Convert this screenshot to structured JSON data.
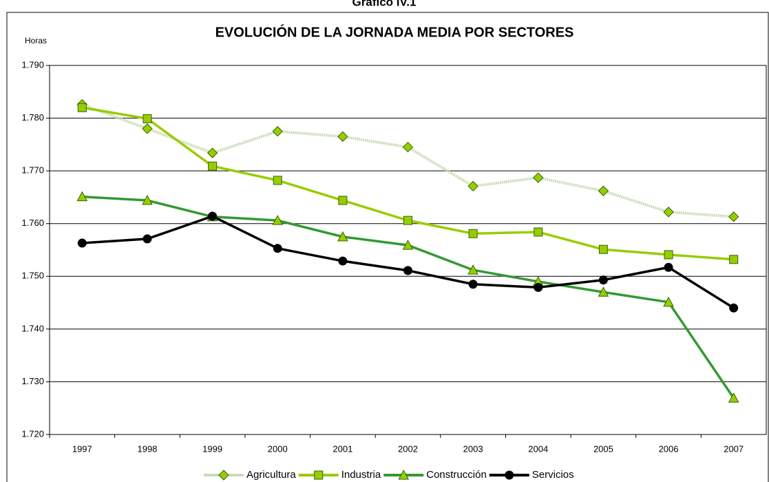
{
  "chart_data": {
    "type": "line",
    "heading": "Gráfico IV.1",
    "title": "EVOLUCIÓN DE LA JORNADA MEDIA POR SECTORES",
    "y_label": "Horas",
    "categories": [
      "1997",
      "1998",
      "1999",
      "2000",
      "2001",
      "2002",
      "2003",
      "2004",
      "2005",
      "2006",
      "2007"
    ],
    "ylim": [
      1720,
      1790
    ],
    "yticks": [
      {
        "value": 1720,
        "label": "1.720"
      },
      {
        "value": 1730,
        "label": "1.730"
      },
      {
        "value": 1740,
        "label": "1.740"
      },
      {
        "value": 1750,
        "label": "1.750"
      },
      {
        "value": 1760,
        "label": "1.760"
      },
      {
        "value": 1770,
        "label": "1.770"
      },
      {
        "value": 1780,
        "label": "1.780"
      },
      {
        "value": 1790,
        "label": "1.790"
      }
    ],
    "grid": true,
    "legend": "bottom",
    "series": [
      {
        "name": "Agricultura",
        "color": "#c9dcb6",
        "marker": "diamond",
        "marker_color": "#99cc00",
        "values": [
          1782.6,
          1778.0,
          1773.4,
          1777.5,
          1776.5,
          1774.5,
          1767.1,
          1768.7,
          1766.2,
          1762.2,
          1761.3
        ]
      },
      {
        "name": "Industria",
        "color": "#99cc00",
        "marker": "square",
        "marker_color": "#99cc00",
        "values": [
          1782.0,
          1779.9,
          1770.9,
          1768.2,
          1764.4,
          1760.6,
          1758.1,
          1758.4,
          1755.1,
          1754.1,
          1753.2
        ]
      },
      {
        "name": "Construcción",
        "color": "#339933",
        "marker": "triangle",
        "marker_color": "#99cc00",
        "values": [
          1765.1,
          1764.4,
          1761.3,
          1760.6,
          1757.5,
          1755.9,
          1751.2,
          1749.0,
          1747.0,
          1745.1,
          1726.9
        ]
      },
      {
        "name": "Servicios",
        "color": "#000000",
        "marker": "circle",
        "marker_color": "#000000",
        "values": [
          1756.3,
          1757.1,
          1761.4,
          1755.3,
          1752.9,
          1751.1,
          1748.5,
          1747.9,
          1749.3,
          1751.7,
          1744.0
        ]
      }
    ]
  }
}
